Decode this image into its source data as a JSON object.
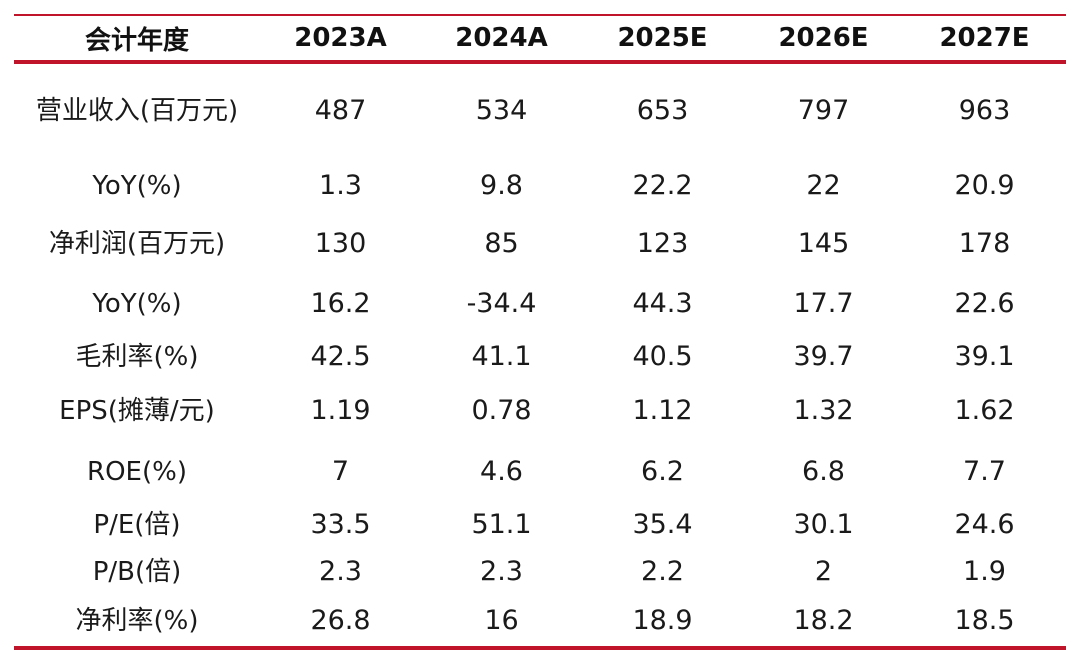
{
  "table": {
    "header": {
      "label": "会计年度",
      "years": [
        "2023A",
        "2024A",
        "2025E",
        "2026E",
        "2027E"
      ]
    },
    "rows": [
      {
        "label": "营业收入(百万元)",
        "values": [
          "487",
          "534",
          "653",
          "797",
          "963"
        ]
      },
      {
        "label": "YoY(%)",
        "values": [
          "1.3",
          "9.8",
          "22.2",
          "22",
          "20.9"
        ]
      },
      {
        "label": "净利润(百万元)",
        "values": [
          "130",
          "85",
          "123",
          "145",
          "178"
        ]
      },
      {
        "label": "YoY(%)",
        "values": [
          "16.2",
          "-34.4",
          "44.3",
          "17.7",
          "22.6"
        ]
      },
      {
        "label": "毛利率(%)",
        "values": [
          "42.5",
          "41.1",
          "40.5",
          "39.7",
          "39.1"
        ]
      },
      {
        "label": "EPS(摊薄/元)",
        "values": [
          "1.19",
          "0.78",
          "1.12",
          "1.32",
          "1.62"
        ]
      },
      {
        "label": "ROE(%)",
        "values": [
          "7",
          "4.6",
          "6.2",
          "6.8",
          "7.7"
        ]
      },
      {
        "label": "P/E(倍)",
        "values": [
          "33.5",
          "51.1",
          "35.4",
          "30.1",
          "24.6"
        ]
      },
      {
        "label": "P/B(倍)",
        "values": [
          "2.3",
          "2.3",
          "2.2",
          "2",
          "1.9"
        ]
      },
      {
        "label": "净利率(%)",
        "values": [
          "26.8",
          "16",
          "18.9",
          "18.2",
          "18.5"
        ]
      }
    ]
  },
  "colors": {
    "accent": "#c0142b",
    "text": "#1a1a1a"
  }
}
